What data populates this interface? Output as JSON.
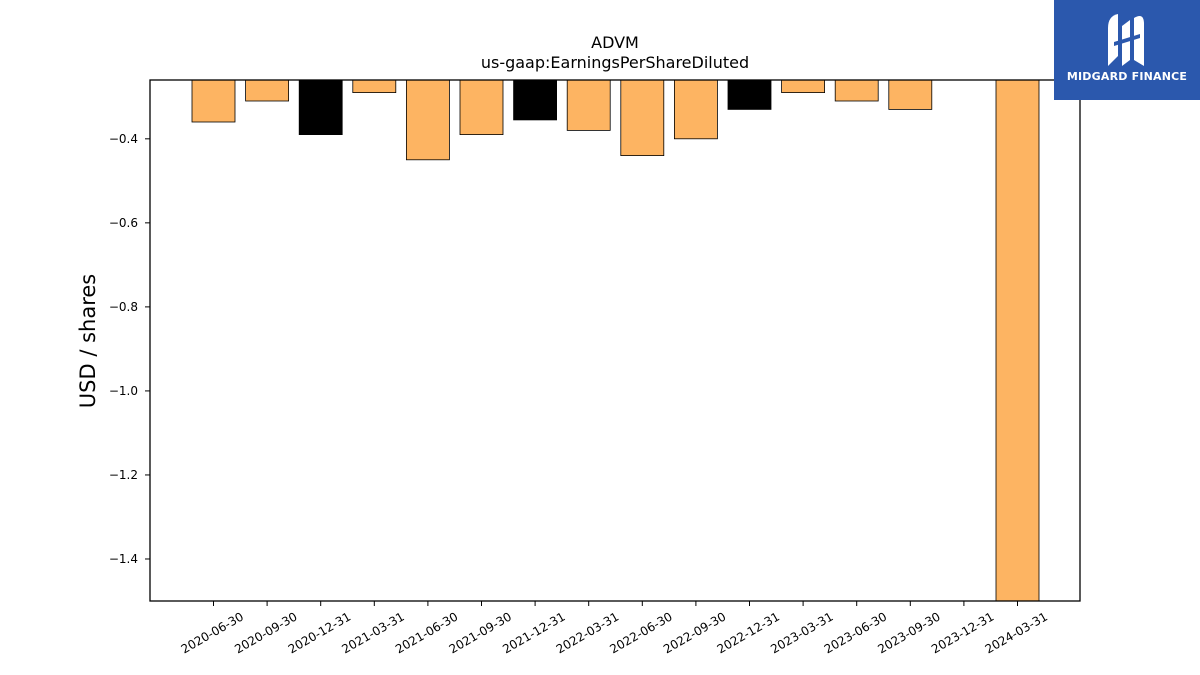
{
  "chart_data": {
    "type": "bar",
    "title": "ADVM",
    "subtitle": "us-gaap:EarningsPerShareDiluted",
    "xlabel": "",
    "ylabel": "USD / shares",
    "ylim": [
      -1.5,
      -0.26
    ],
    "yticks": [
      -1.4,
      -1.2,
      -1.0,
      -0.8,
      -0.6,
      -0.4
    ],
    "grid": false,
    "categories": [
      "2020-06-30",
      "2020-09-30",
      "2020-12-31",
      "2021-03-31",
      "2021-06-30",
      "2021-09-30",
      "2021-12-31",
      "2022-03-31",
      "2022-06-30",
      "2022-09-30",
      "2022-12-31",
      "2023-03-31",
      "2023-06-30",
      "2023-09-30",
      "2023-12-31",
      "2024-03-31"
    ],
    "values": [
      -0.36,
      -0.31,
      -0.39,
      -0.29,
      -0.45,
      -0.39,
      -0.355,
      -0.38,
      -0.44,
      -0.4,
      -0.33,
      -0.29,
      -0.31,
      -0.33,
      null,
      -1.5
    ],
    "bar_colors": [
      "#fdb462",
      "#fdb462",
      "#000000",
      "#fdb462",
      "#fdb462",
      "#fdb462",
      "#000000",
      "#fdb462",
      "#fdb462",
      "#fdb462",
      "#000000",
      "#fdb462",
      "#fdb462",
      "#fdb462",
      "#fdb462",
      "#fdb462"
    ]
  },
  "logo": {
    "text": "MIDGARD FINANCE",
    "color": "#2b58ad"
  }
}
